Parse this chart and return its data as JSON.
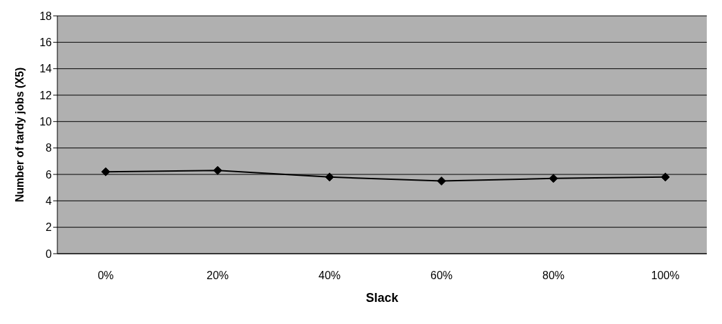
{
  "chart_data": {
    "type": "line",
    "xlabel": "Slack",
    "ylabel": "Number of tardy jobs (X5)",
    "categories": [
      "0%",
      "20%",
      "40%",
      "60%",
      "80%",
      "100%"
    ],
    "series": [
      {
        "color": "#000000",
        "values": [
          6.2,
          6.3,
          5.8,
          5.5,
          5.7,
          5.8
        ]
      }
    ],
    "ylim": [
      0,
      18
    ],
    "yticks": [
      0,
      2,
      4,
      6,
      8,
      10,
      12,
      14,
      16,
      18
    ],
    "grid": "y",
    "marker": "diamond",
    "line_style": "solid"
  }
}
